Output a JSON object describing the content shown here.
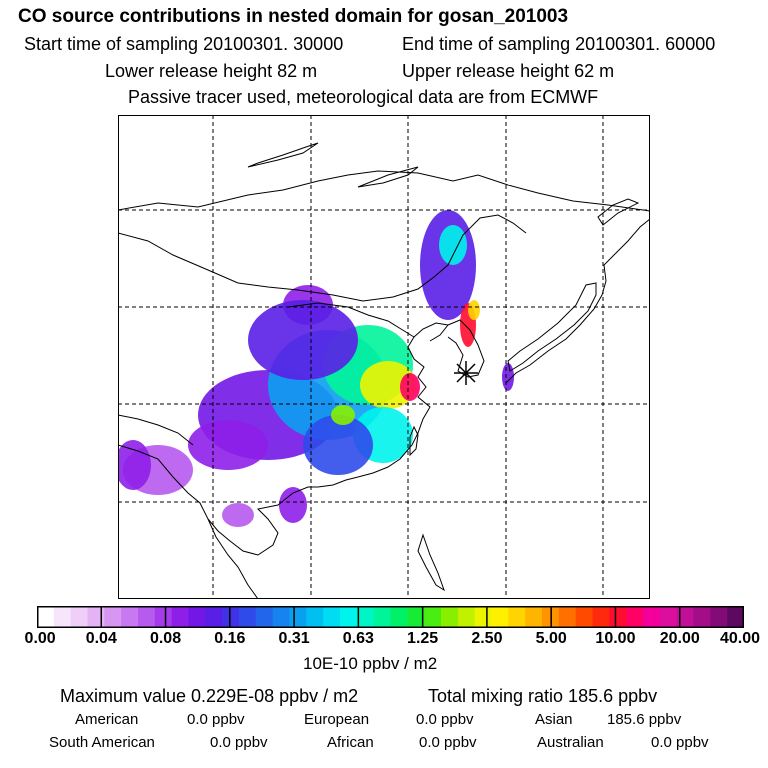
{
  "header": {
    "title": "CO  source contributions in nested domain for gosan_201003",
    "start_label": "Start time of sampling 20100301. 30000",
    "end_label": "End time of sampling 20100301. 60000",
    "lower_release": "Lower release height   82 m",
    "upper_release": "Upper release height   62 m",
    "tracer_note": "Passive tracer used, meteorological data are from ECMWF"
  },
  "colorbar": {
    "ticks": [
      "0.00",
      "0.04",
      "0.08",
      "0.16",
      "0.31",
      "0.63",
      "1.25",
      "2.50",
      "5.00",
      "10.00",
      "20.00",
      "40.00"
    ],
    "unit": "10E-10 ppbv / m2",
    "colors": [
      "#ffffff",
      "#f7e6fb",
      "#efcff8",
      "#e5b3f5",
      "#d696f2",
      "#c878f0",
      "#b75aee",
      "#a43cec",
      "#8e1fe8",
      "#7317e6",
      "#5a1fe6",
      "#4232e6",
      "#2f4bea",
      "#2266ec",
      "#1683ee",
      "#0aa0f0",
      "#00c0f2",
      "#00ddf3",
      "#00f3ec",
      "#00f5c6",
      "#00f49a",
      "#00f068",
      "#17ec34",
      "#4aec12",
      "#88ef00",
      "#c2f100",
      "#eef300",
      "#fff000",
      "#ffd400",
      "#ffb500",
      "#ff9300",
      "#ff7000",
      "#ff4a00",
      "#ff2a0e",
      "#ff0d2e",
      "#ff0065",
      "#f3009c",
      "#db0e9d",
      "#c20f98",
      "#a30d88",
      "#820b78",
      "#5c0a60"
    ]
  },
  "summary": {
    "max_label": "Maximum value  0.229E-08 ppbv / m2",
    "total_label": "Total mixing ratio      185.6 ppbv",
    "american_label": "American",
    "american_value": "0.0 ppbv",
    "european_label": "European",
    "european_value": "0.0 ppbv",
    "asian_label": "Asian",
    "asian_value": "185.6 ppbv",
    "south_american_label": "South American",
    "south_american_value": "0.0 ppbv",
    "african_label": "African",
    "african_value": "0.0 ppbv",
    "australian_label": "Australian",
    "australian_value": "0.0 ppbv"
  },
  "map": {
    "receptor_marker": "asterisk"
  }
}
